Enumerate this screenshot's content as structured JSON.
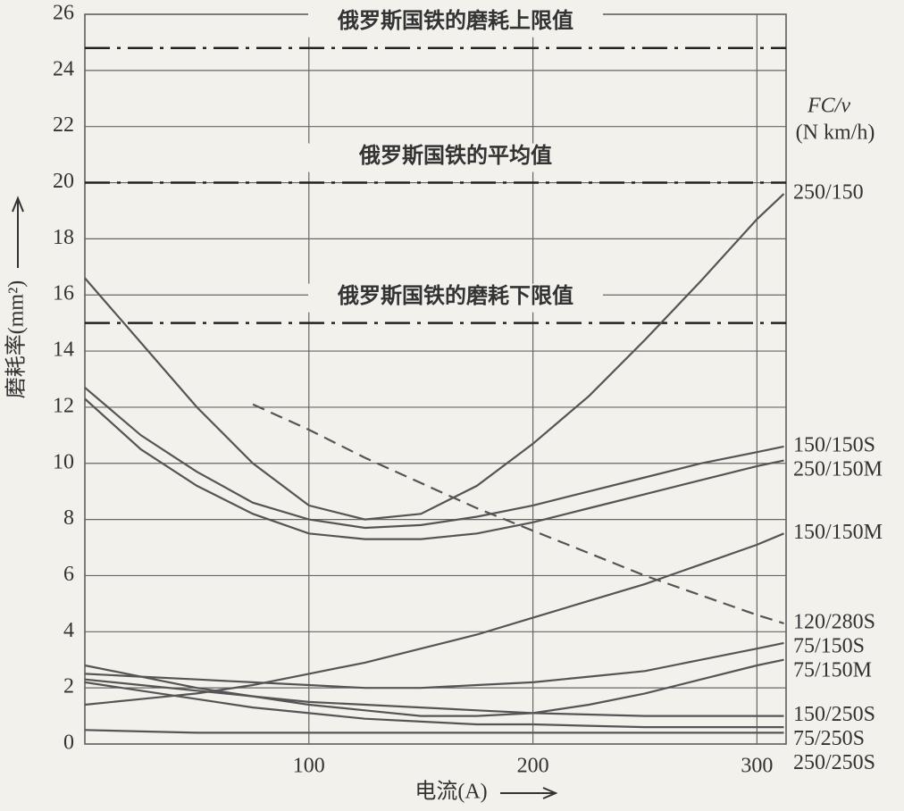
{
  "chart_data": {
    "type": "line",
    "xlabel": "电流(A)",
    "ylabel": "磨耗率(mm²)",
    "legend_title": "FC/v",
    "legend_unit": "(N km/h)",
    "x": [
      0,
      25,
      50,
      75,
      100,
      125,
      150,
      175,
      200,
      225,
      250,
      275,
      300,
      312
    ],
    "xlim": [
      0,
      313
    ],
    "xticks": [
      100,
      200,
      300
    ],
    "ylim": [
      0,
      26
    ],
    "yticks": [
      0,
      2,
      4,
      6,
      8,
      10,
      12,
      14,
      16,
      18,
      20,
      22,
      24,
      26
    ],
    "grid": true,
    "reference_lines": [
      {
        "value": 24.8,
        "label": "俄罗斯国铁的磨耗上限值"
      },
      {
        "value": 20,
        "label": "俄罗斯国铁的平均值"
      },
      {
        "value": 15,
        "label": "俄罗斯国铁的磨耗下限值"
      }
    ],
    "series": [
      {
        "name": "250/150",
        "color": "#555",
        "values": [
          16.6,
          14.3,
          12.0,
          10.0,
          8.5,
          8.0,
          8.2,
          9.2,
          10.7,
          12.4,
          14.4,
          16.5,
          18.7,
          19.6
        ]
      },
      {
        "name": "150/150S",
        "color": "#555",
        "values": [
          12.7,
          11.0,
          9.7,
          8.6,
          8.0,
          7.7,
          7.8,
          8.1,
          8.5,
          9.0,
          9.5,
          10.0,
          10.4,
          10.6
        ]
      },
      {
        "name": "250/150M",
        "color": "#555",
        "values": [
          12.3,
          10.5,
          9.2,
          8.2,
          7.5,
          7.3,
          7.3,
          7.5,
          7.9,
          8.4,
          8.9,
          9.4,
          9.9,
          10.1
        ]
      },
      {
        "name": "150/150M",
        "color": "#555",
        "values": [
          1.4,
          1.6,
          1.8,
          2.1,
          2.5,
          2.9,
          3.4,
          3.9,
          4.5,
          5.1,
          5.7,
          6.4,
          7.1,
          7.5
        ]
      },
      {
        "name": "120/280S",
        "color": "#555",
        "style": "dashed",
        "values": [
          null,
          null,
          null,
          12.1,
          11.2,
          10.2,
          9.3,
          8.4,
          7.6,
          6.8,
          6.0,
          5.3,
          4.6,
          4.3
        ]
      },
      {
        "name": "75/150S",
        "color": "#555",
        "values": [
          2.5,
          2.4,
          2.3,
          2.2,
          2.1,
          2.0,
          2.0,
          2.1,
          2.2,
          2.4,
          2.6,
          3.0,
          3.4,
          3.6
        ]
      },
      {
        "name": "75/150M",
        "color": "#555",
        "values": [
          2.8,
          2.4,
          2.0,
          1.7,
          1.4,
          1.2,
          1.0,
          1.0,
          1.1,
          1.4,
          1.8,
          2.3,
          2.8,
          3.0
        ]
      },
      {
        "name": "150/250S",
        "color": "#555",
        "values": [
          2.3,
          2.1,
          1.9,
          1.7,
          1.5,
          1.4,
          1.3,
          1.2,
          1.1,
          1.05,
          1.0,
          1.0,
          1.0,
          1.0
        ]
      },
      {
        "name": "75/250S",
        "color": "#555",
        "values": [
          2.2,
          1.9,
          1.6,
          1.3,
          1.1,
          0.9,
          0.8,
          0.7,
          0.7,
          0.65,
          0.6,
          0.6,
          0.6,
          0.6
        ]
      },
      {
        "name": "250/250S",
        "color": "#555",
        "values": [
          0.5,
          0.45,
          0.4,
          0.4,
          0.4,
          0.4,
          0.4,
          0.4,
          0.4,
          0.4,
          0.4,
          0.4,
          0.4,
          0.4
        ]
      }
    ]
  }
}
